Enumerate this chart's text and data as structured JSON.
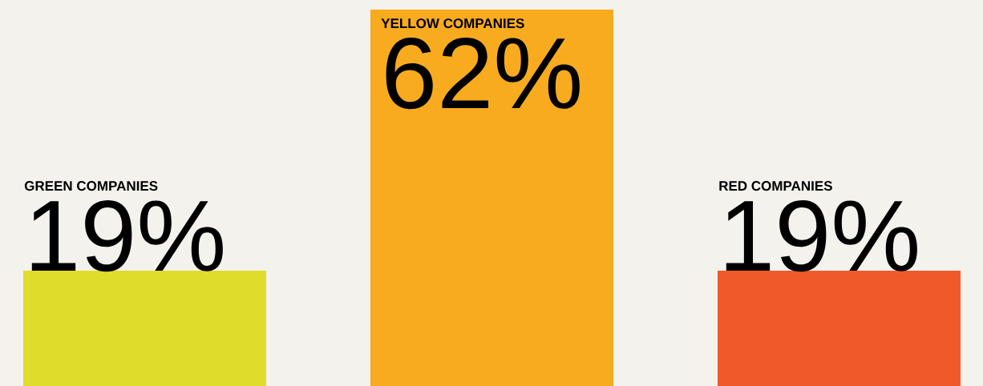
{
  "chart_data": {
    "type": "bar",
    "categories": [
      "GREEN COMPANIES",
      "YELLOW COMPANIES",
      "RED COMPANIES"
    ],
    "values": [
      19,
      62,
      19
    ],
    "colors": [
      "#e0dc2b",
      "#f8ab1e",
      "#f05a2b"
    ],
    "value_labels": [
      "19%",
      "62%",
      "19%"
    ]
  }
}
